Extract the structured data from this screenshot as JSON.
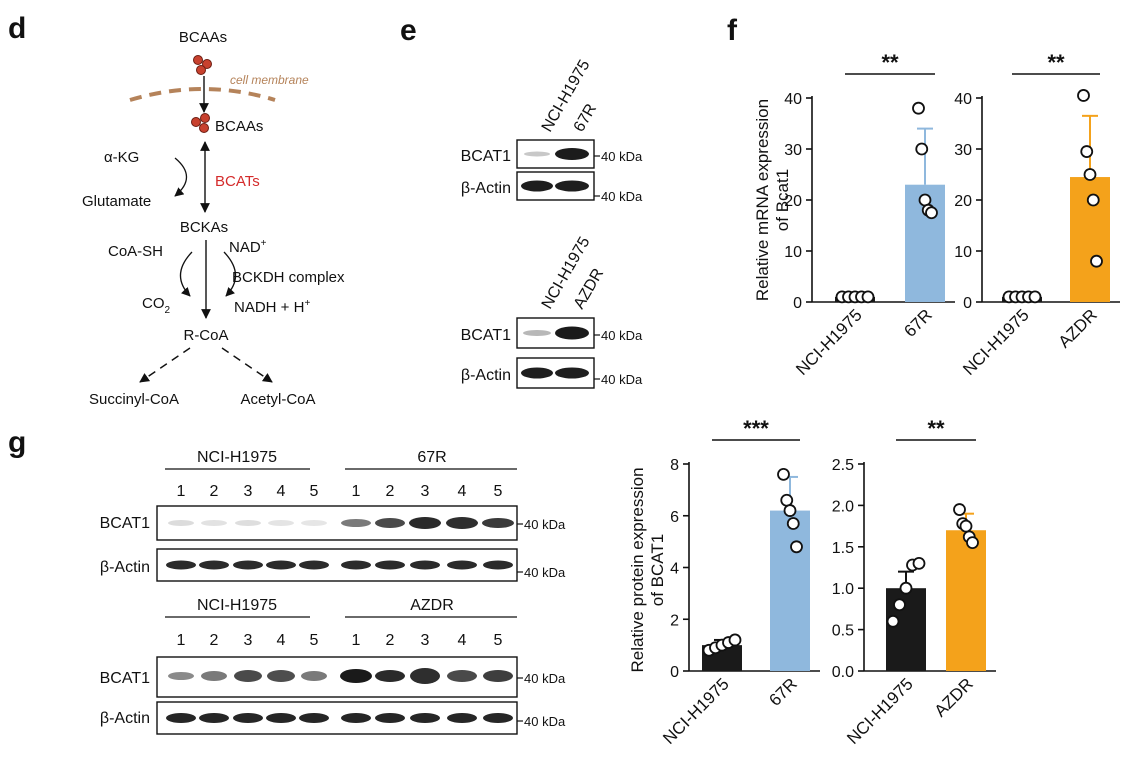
{
  "panel_d": {
    "label": "d",
    "bcaas_top": "BCAAs",
    "cell_membrane": "cell membrane",
    "bcaas_inside": "BCAAs",
    "akg": "α-KG",
    "glutamate": "Glutamate",
    "bcats": "BCATs",
    "bckas": "BCKAs",
    "coash": "CoA-SH",
    "nad": "NAD",
    "nad_sup": "+",
    "bckdh": "BCKDH complex",
    "co2": "CO",
    "co2_sub": "2",
    "nadh": "NADH + H",
    "nadh_sup": "+",
    "rcoa": "R-CoA",
    "succinyl": "Succinyl-CoA",
    "acetyl": "Acetyl-CoA",
    "colors": {
      "membrane": "#b5835a",
      "dot": "#c8412e",
      "bcats": "#d42b2b"
    }
  },
  "panel_e": {
    "label": "e",
    "blots": [
      {
        "cols": [
          "NCI-H1975",
          "67R"
        ],
        "rows": [
          "BCAT1",
          "β-Actin"
        ],
        "kda": [
          "40 kDa",
          "40 kDa"
        ]
      },
      {
        "cols": [
          "NCI-H1975",
          "AZDR"
        ],
        "rows": [
          "BCAT1",
          "β-Actin"
        ],
        "kda": [
          "40 kDa",
          "40 kDa"
        ]
      }
    ]
  },
  "panel_f": {
    "label": "f",
    "ylabel_line1": "Relative mRNA expression",
    "ylabel_line2": "of Bcat1"
  },
  "panel_g": {
    "label": "g",
    "lane_numbers": [
      "1",
      "2",
      "3",
      "4",
      "5"
    ],
    "blot1": {
      "group1": "NCI-H1975",
      "group2": "67R",
      "rows": [
        "BCAT1",
        "β-Actin"
      ],
      "kda": [
        "40 kDa",
        "40 kDa"
      ]
    },
    "blot2": {
      "group1": "NCI-H1975",
      "group2": "AZDR",
      "rows": [
        "BCAT1",
        "β-Actin"
      ],
      "kda": [
        "40 kDa",
        "40 kDa"
      ]
    },
    "ylabel_line1": "Relative protein expression",
    "ylabel_line2": "of BCAT1"
  },
  "chart_data": [
    {
      "id": "f-left",
      "type": "bar",
      "categories": [
        "NCI-H1975",
        "67R"
      ],
      "values": [
        1.0,
        23.0
      ],
      "errors": [
        0.2,
        11.0
      ],
      "points": [
        [
          1,
          1,
          1,
          1,
          1
        ],
        [
          38,
          30,
          20,
          18,
          17.5
        ]
      ],
      "colors": [
        "#1a1a1a",
        "#8fb8dd"
      ],
      "ylim": [
        0,
        40
      ],
      "yticks": [
        0,
        10,
        20,
        30,
        40
      ],
      "significance": "**"
    },
    {
      "id": "f-right",
      "type": "bar",
      "categories": [
        "NCI-H1975",
        "AZDR"
      ],
      "values": [
        1.0,
        24.5
      ],
      "errors": [
        0.2,
        12.0
      ],
      "points": [
        [
          1,
          1,
          1,
          1,
          1
        ],
        [
          40.5,
          29.5,
          25,
          20,
          8
        ]
      ],
      "colors": [
        "#1a1a1a",
        "#f4a21b"
      ],
      "ylim": [
        0,
        40
      ],
      "yticks": [
        0,
        10,
        20,
        30,
        40
      ],
      "significance": "**"
    },
    {
      "id": "g-left",
      "type": "bar",
      "categories": [
        "NCI-H1975",
        "67R"
      ],
      "values": [
        1.0,
        6.2
      ],
      "errors": [
        0.2,
        1.3
      ],
      "points": [
        [
          0.8,
          0.9,
          1.0,
          1.1,
          1.2
        ],
        [
          7.6,
          6.6,
          6.2,
          5.7,
          4.8
        ]
      ],
      "colors": [
        "#1a1a1a",
        "#8fb8dd"
      ],
      "ylim": [
        0,
        8
      ],
      "yticks": [
        0,
        2,
        4,
        6,
        8
      ],
      "significance": "***"
    },
    {
      "id": "g-right",
      "type": "bar",
      "categories": [
        "NCI-H1975",
        "AZDR"
      ],
      "values": [
        1.0,
        1.7
      ],
      "errors": [
        0.2,
        0.2
      ],
      "points": [
        [
          0.6,
          0.8,
          1.0,
          1.28,
          1.3
        ],
        [
          1.95,
          1.78,
          1.75,
          1.62,
          1.55
        ]
      ],
      "colors": [
        "#1a1a1a",
        "#f4a21b"
      ],
      "ylim": [
        0,
        2.5
      ],
      "yticks": [
        0.0,
        0.5,
        1.0,
        1.5,
        2.0,
        2.5
      ],
      "significance": "**"
    }
  ]
}
